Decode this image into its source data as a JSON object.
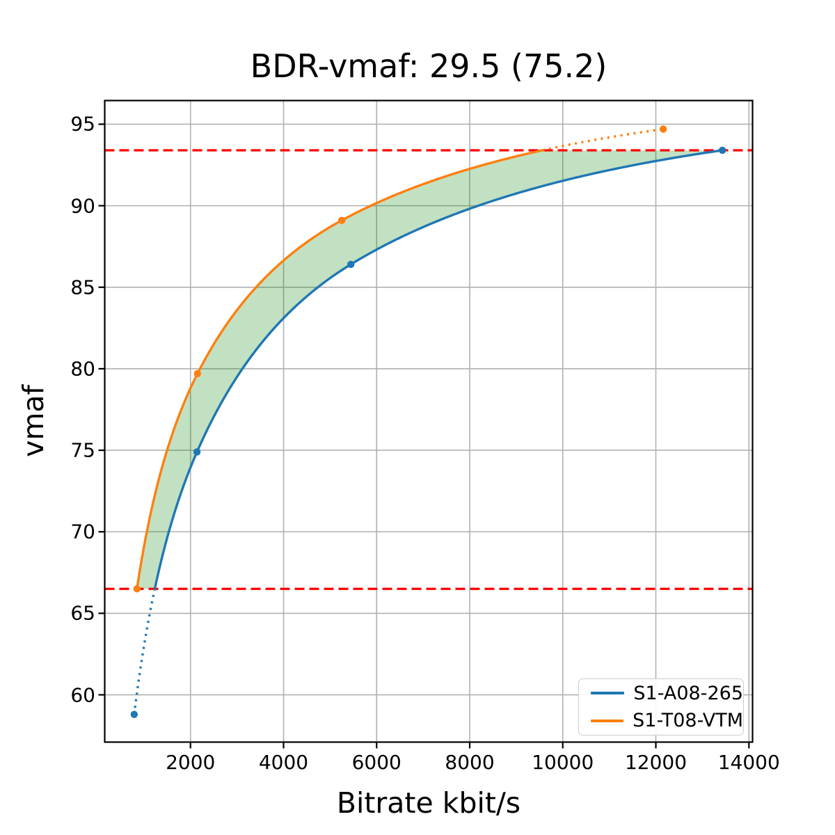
{
  "title": "BDR-vmaf: 29.5 (75.2)",
  "chart_data": {
    "type": "line",
    "title": "BDR-vmaf: 29.5 (75.2)",
    "xlabel": "Bitrate kbit/s",
    "ylabel": "vmaf",
    "xlim": [
      157,
      14078
    ],
    "ylim": [
      57.1,
      96.45
    ],
    "xticks": [
      2000,
      4000,
      6000,
      8000,
      10000,
      12000,
      14000
    ],
    "yticks": [
      60,
      65,
      70,
      75,
      80,
      85,
      90,
      95
    ],
    "grid": true,
    "grid_color": "#b0b0b0",
    "legend_position": "lower right",
    "series": [
      {
        "name": "S1-A08-265",
        "color": "#1f77b4",
        "points": [
          [
            790,
            58.8
          ],
          [
            2140,
            74.9
          ],
          [
            5445,
            86.4
          ],
          [
            13430,
            93.4
          ]
        ],
        "note": "curve dotted where vmaf is outside the overlap interval"
      },
      {
        "name": "S1-T08-VTM",
        "color": "#ff7f0e",
        "points": [
          [
            850,
            66.5
          ],
          [
            2150,
            79.7
          ],
          [
            5250,
            89.1
          ],
          [
            12160,
            94.7
          ]
        ],
        "note": "curve dotted where vmaf is outside the overlap interval"
      }
    ],
    "guides": {
      "type": "hlines",
      "color": "#ff0000",
      "style": "dashed",
      "lower": 66.5,
      "upper": 93.4
    },
    "fill_between": {
      "color": "#008000",
      "opacity": 0.24,
      "region": "area between the two rate-distortion curves clipped to vmaf in [66.5, 93.4]"
    }
  }
}
